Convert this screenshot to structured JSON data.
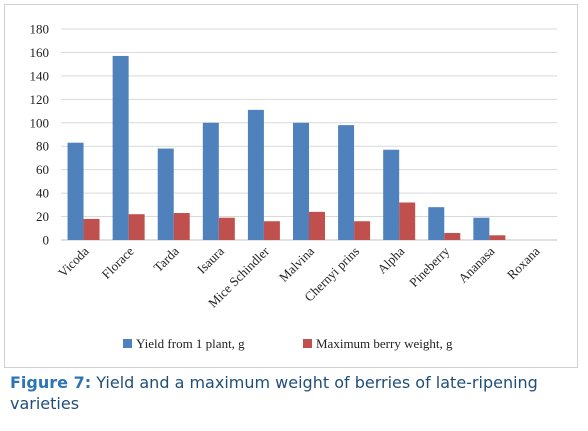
{
  "chart_data": {
    "type": "bar",
    "categories": [
      "Vicoda",
      "Florace",
      "Tarda",
      "Isaura",
      "Mice Schindler",
      "Malvina",
      "Chernyi prins",
      "Alpha",
      "Pineberry",
      "Ananasa",
      "Roxana"
    ],
    "series": [
      {
        "name": "Yield from 1 plant, g",
        "color": "#4f81bd",
        "values": [
          83,
          157,
          78,
          100,
          111,
          100,
          98,
          77,
          28,
          19,
          0
        ]
      },
      {
        "name": "Maximum berry weight, g",
        "color": "#c0504d",
        "values": [
          18,
          22,
          23,
          19,
          16,
          24,
          16,
          32,
          6,
          4,
          0
        ]
      }
    ],
    "ylim": [
      0,
      180
    ],
    "yticks": [
      "0",
      "20",
      "40",
      "60",
      "80",
      "100",
      "120",
      "140",
      "160",
      "180"
    ],
    "grid": true,
    "legend_position": "bottom"
  },
  "caption": {
    "label": "Figure 7:",
    "text": " Yield and a maximum weight of berries of late-ripening varieties"
  }
}
